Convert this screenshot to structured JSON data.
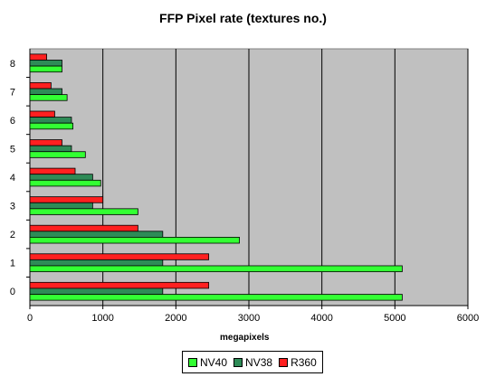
{
  "chart_data": {
    "type": "bar",
    "orientation": "horizontal",
    "title": "FFP Pixel rate (textures no.)",
    "xlabel": "megapixels",
    "ylabel": "",
    "xlim": [
      0,
      6000
    ],
    "xticks": [
      0,
      1000,
      2000,
      3000,
      4000,
      5000,
      6000
    ],
    "categories": [
      "0",
      "1",
      "2",
      "3",
      "4",
      "5",
      "6",
      "7",
      "8"
    ],
    "series": [
      {
        "name": "NV40",
        "color": "#33ff33",
        "values": [
          5100,
          5100,
          2870,
          1480,
          970,
          760,
          590,
          510,
          440
        ]
      },
      {
        "name": "NV38",
        "color": "#2e8b57",
        "values": [
          1820,
          1820,
          1820,
          860,
          860,
          570,
          570,
          440,
          440
        ]
      },
      {
        "name": "R360",
        "color": "#ff2020",
        "values": [
          2450,
          2450,
          1480,
          1000,
          620,
          440,
          340,
          290,
          230
        ]
      }
    ],
    "grid": true,
    "legend_position": "bottom",
    "plot_background": "#c0c0c0"
  }
}
